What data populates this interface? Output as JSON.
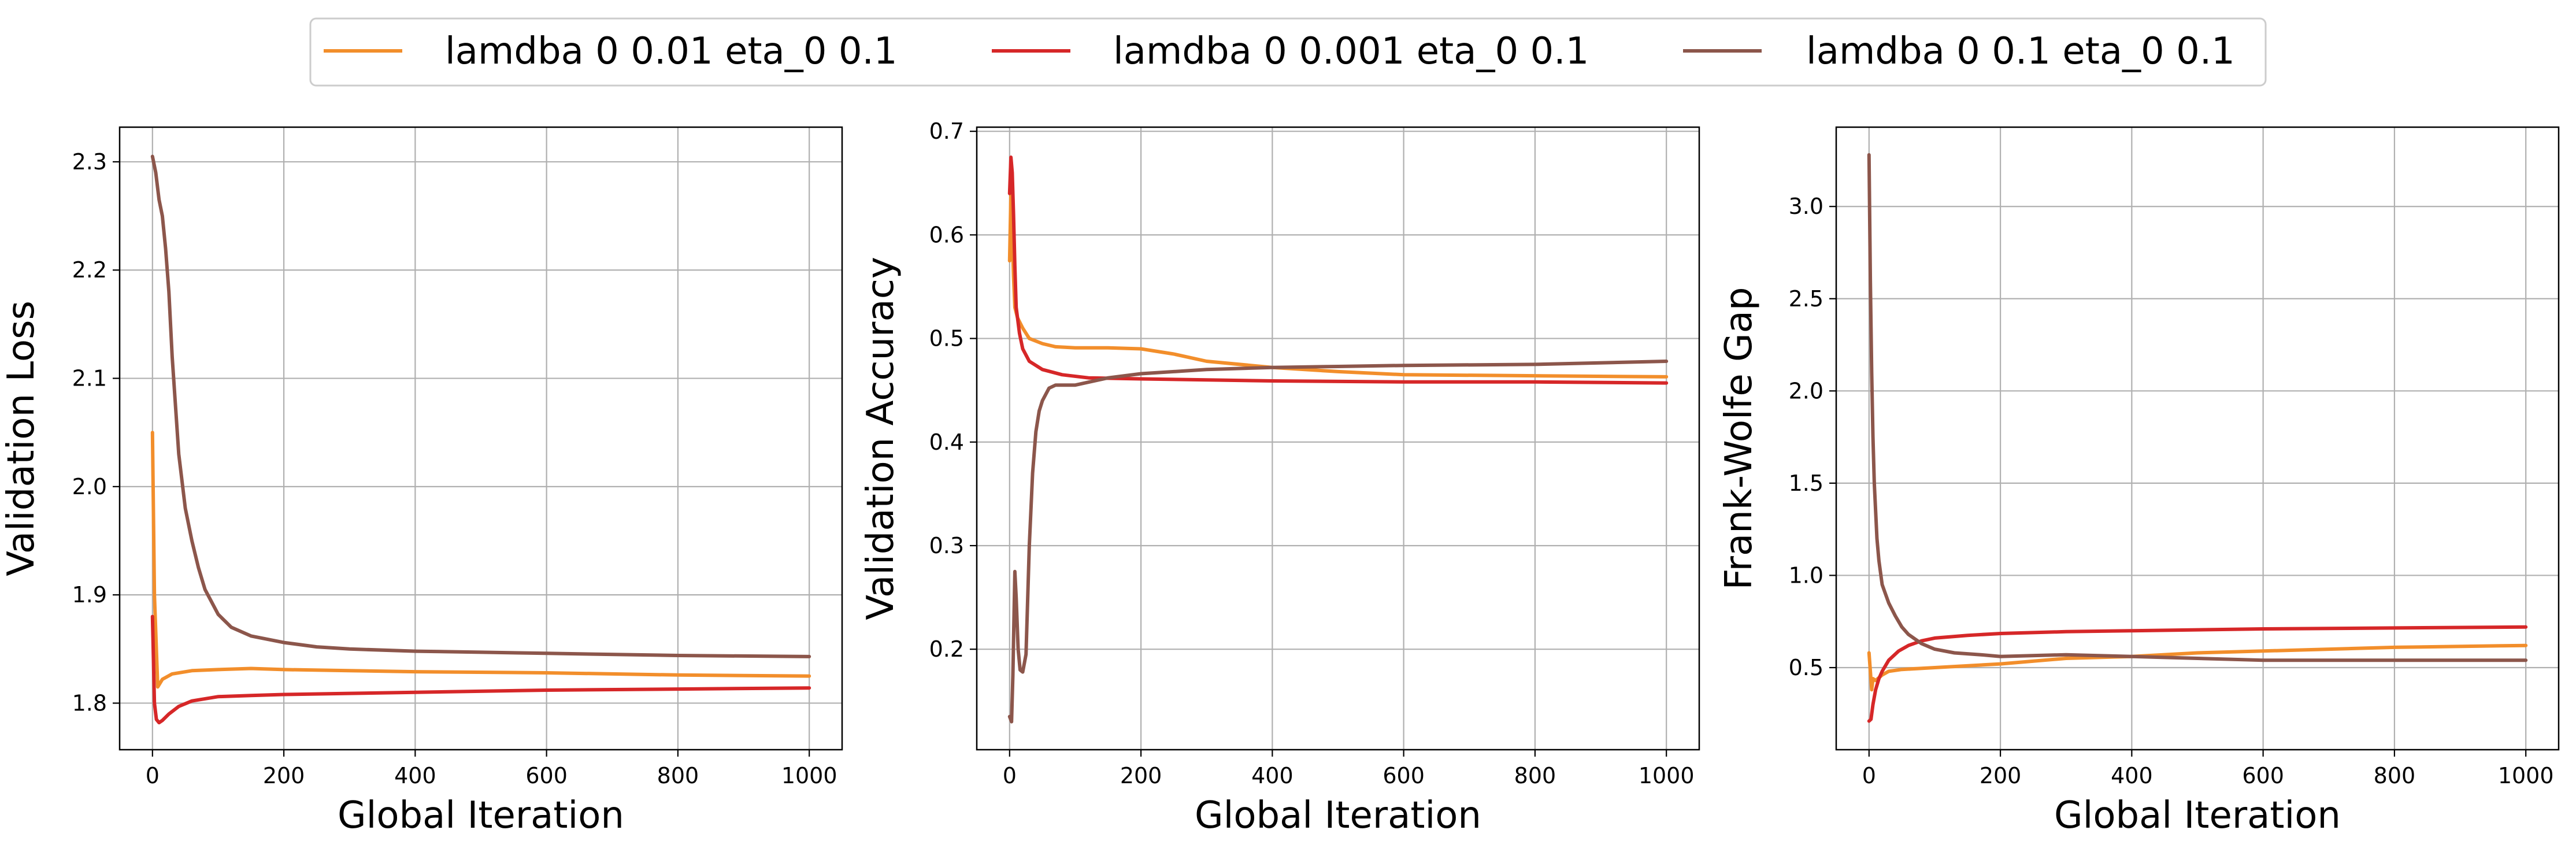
{
  "legend": {
    "location": "top-center",
    "entries": [
      {
        "label": "lamdba 0 0.01 eta_0 0.1",
        "color": "#f28e2b"
      },
      {
        "label": "lamdba 0 0.001 eta_0 0.1",
        "color": "#d62728"
      },
      {
        "label": "lamdba 0 0.1 eta_0 0.1",
        "color": "#8c564b"
      }
    ]
  },
  "chart_data": [
    {
      "type": "line",
      "xlabel": "Global Iteration",
      "ylabel": "Validation Loss",
      "xlim": [
        -50,
        1050
      ],
      "ylim": [
        1.757,
        2.332
      ],
      "xticks": [
        0,
        200,
        400,
        600,
        800,
        1000
      ],
      "yticks": [
        1.8,
        1.9,
        2.0,
        2.1,
        2.2,
        2.3
      ],
      "ytick_labels": [
        "1.8",
        "1.9",
        "2.0",
        "2.1",
        "2.2",
        "2.3"
      ],
      "grid": true,
      "series": [
        {
          "name": "lamdba 0 0.01 eta_0 0.1",
          "color": "#f28e2b",
          "x": [
            0,
            3,
            8,
            15,
            30,
            60,
            100,
            150,
            200,
            300,
            400,
            600,
            800,
            1000
          ],
          "y": [
            2.05,
            1.9,
            1.815,
            1.822,
            1.827,
            1.83,
            1.831,
            1.832,
            1.831,
            1.83,
            1.829,
            1.828,
            1.826,
            1.825
          ]
        },
        {
          "name": "lamdba 0 0.001 eta_0 0.1",
          "color": "#d62728",
          "x": [
            0,
            3,
            6,
            10,
            15,
            25,
            40,
            60,
            100,
            150,
            200,
            300,
            400,
            600,
            800,
            1000
          ],
          "y": [
            1.88,
            1.8,
            1.785,
            1.782,
            1.784,
            1.79,
            1.797,
            1.802,
            1.806,
            1.807,
            1.808,
            1.809,
            1.81,
            1.812,
            1.813,
            1.814
          ]
        },
        {
          "name": "lamdba 0 0.1 eta_0 0.1",
          "color": "#8c564b",
          "x": [
            0,
            5,
            10,
            15,
            20,
            25,
            30,
            40,
            50,
            60,
            70,
            80,
            100,
            120,
            150,
            200,
            250,
            300,
            400,
            500,
            600,
            800,
            1000
          ],
          "y": [
            2.305,
            2.29,
            2.265,
            2.25,
            2.22,
            2.18,
            2.12,
            2.03,
            1.98,
            1.95,
            1.925,
            1.905,
            1.882,
            1.87,
            1.862,
            1.856,
            1.852,
            1.85,
            1.848,
            1.847,
            1.846,
            1.844,
            1.843
          ]
        }
      ]
    },
    {
      "type": "line",
      "xlabel": "Global Iteration",
      "ylabel": "Validation Accuracy",
      "xlim": [
        -50,
        1050
      ],
      "ylim": [
        0.103,
        0.704
      ],
      "xticks": [
        0,
        200,
        400,
        600,
        800,
        1000
      ],
      "yticks": [
        0.2,
        0.3,
        0.4,
        0.5,
        0.6,
        0.7
      ],
      "ytick_labels": [
        "0.2",
        "0.3",
        "0.4",
        "0.5",
        "0.6",
        "0.7"
      ],
      "grid": true,
      "series": [
        {
          "name": "lamdba 0 0.01 eta_0 0.1",
          "color": "#f28e2b",
          "x": [
            0,
            2,
            4,
            6,
            8,
            12,
            20,
            30,
            50,
            70,
            100,
            150,
            200,
            250,
            300,
            400,
            500,
            600,
            800,
            1000
          ],
          "y": [
            0.575,
            0.64,
            0.6,
            0.56,
            0.53,
            0.52,
            0.51,
            0.5,
            0.495,
            0.492,
            0.491,
            0.491,
            0.49,
            0.485,
            0.478,
            0.472,
            0.468,
            0.465,
            0.464,
            0.463
          ]
        },
        {
          "name": "lamdba 0 0.001 eta_0 0.1",
          "color": "#d62728",
          "x": [
            0,
            2,
            4,
            6,
            8,
            10,
            15,
            20,
            30,
            50,
            80,
            120,
            200,
            300,
            400,
            600,
            800,
            1000
          ],
          "y": [
            0.64,
            0.675,
            0.66,
            0.62,
            0.57,
            0.53,
            0.505,
            0.49,
            0.478,
            0.47,
            0.465,
            0.462,
            0.461,
            0.46,
            0.459,
            0.458,
            0.458,
            0.457
          ]
        },
        {
          "name": "lamdba 0 0.1 eta_0 0.1",
          "color": "#8c564b",
          "x": [
            0,
            3,
            5,
            8,
            10,
            13,
            16,
            20,
            25,
            30,
            35,
            40,
            45,
            50,
            60,
            70,
            80,
            100,
            150,
            200,
            300,
            400,
            500,
            600,
            800,
            1000
          ],
          "y": [
            0.135,
            0.13,
            0.175,
            0.275,
            0.25,
            0.2,
            0.18,
            0.178,
            0.195,
            0.3,
            0.37,
            0.41,
            0.43,
            0.44,
            0.452,
            0.455,
            0.455,
            0.455,
            0.462,
            0.466,
            0.47,
            0.472,
            0.473,
            0.474,
            0.475,
            0.478
          ]
        }
      ]
    },
    {
      "type": "line",
      "xlabel": "Global Iteration",
      "ylabel": "Frank-Wolfe Gap",
      "xlim": [
        -50,
        1050
      ],
      "ylim": [
        0.055,
        3.43
      ],
      "xticks": [
        0,
        200,
        400,
        600,
        800,
        1000
      ],
      "yticks": [
        0.5,
        1.0,
        1.5,
        2.0,
        2.5,
        3.0
      ],
      "ytick_labels": [
        "0.5",
        "1.0",
        "1.5",
        "2.0",
        "2.5",
        "3.0"
      ],
      "grid": true,
      "series": [
        {
          "name": "lamdba 0 0.01 eta_0 0.1",
          "color": "#f28e2b",
          "x": [
            0,
            2,
            4,
            6,
            10,
            20,
            30,
            50,
            100,
            200,
            300,
            400,
            500,
            600,
            800,
            1000
          ],
          "y": [
            0.58,
            0.48,
            0.38,
            0.44,
            0.43,
            0.46,
            0.48,
            0.49,
            0.5,
            0.52,
            0.55,
            0.56,
            0.58,
            0.59,
            0.61,
            0.62
          ]
        },
        {
          "name": "lamdba 0 0.001 eta_0 0.1",
          "color": "#d62728",
          "x": [
            0,
            3,
            6,
            10,
            15,
            20,
            30,
            45,
            60,
            80,
            100,
            150,
            200,
            300,
            400,
            600,
            800,
            1000
          ],
          "y": [
            0.21,
            0.22,
            0.3,
            0.38,
            0.44,
            0.48,
            0.54,
            0.59,
            0.62,
            0.645,
            0.66,
            0.675,
            0.685,
            0.695,
            0.7,
            0.71,
            0.715,
            0.72
          ]
        },
        {
          "name": "lamdba 0 0.1 eta_0 0.1",
          "color": "#8c564b",
          "x": [
            0,
            2,
            4,
            6,
            8,
            10,
            12,
            15,
            20,
            25,
            30,
            40,
            50,
            60,
            80,
            100,
            130,
            170,
            200,
            300,
            400,
            500,
            600,
            800,
            1000
          ],
          "y": [
            3.28,
            2.6,
            2.1,
            1.75,
            1.5,
            1.35,
            1.2,
            1.08,
            0.95,
            0.9,
            0.85,
            0.78,
            0.72,
            0.68,
            0.63,
            0.6,
            0.58,
            0.57,
            0.56,
            0.57,
            0.56,
            0.55,
            0.54,
            0.54,
            0.54
          ]
        }
      ]
    }
  ]
}
